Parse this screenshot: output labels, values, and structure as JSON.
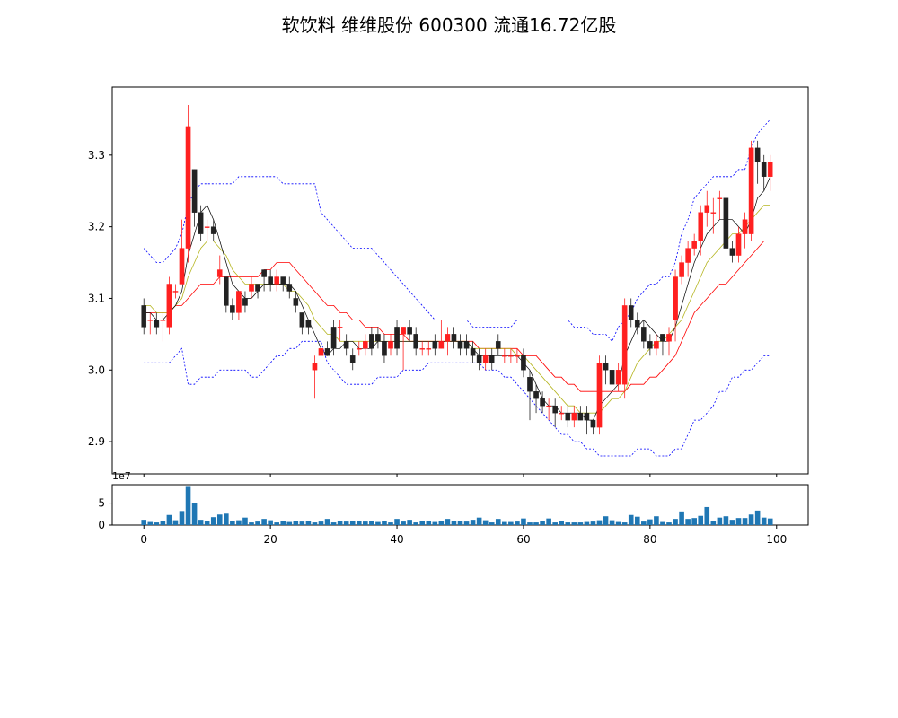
{
  "title": "软饮料 维维股份 600300 流通16.72亿股",
  "chart_data": [
    {
      "type": "candlestick",
      "x": [
        0,
        1,
        2,
        3,
        4,
        5,
        6,
        7,
        8,
        9,
        10,
        11,
        12,
        13,
        14,
        15,
        16,
        17,
        18,
        19,
        20,
        21,
        22,
        23,
        24,
        25,
        26,
        27,
        28,
        29,
        30,
        31,
        32,
        33,
        34,
        35,
        36,
        37,
        38,
        39,
        40,
        41,
        42,
        43,
        44,
        45,
        46,
        47,
        48,
        49,
        50,
        51,
        52,
        53,
        54,
        55,
        56,
        57,
        58,
        59,
        60,
        61,
        62,
        63,
        64,
        65,
        66,
        67,
        68,
        69,
        70,
        71,
        72,
        73,
        74,
        75,
        76,
        77,
        78,
        79,
        80,
        81,
        82,
        83,
        84,
        85,
        86,
        87,
        88,
        89,
        90,
        91,
        92,
        93,
        94,
        95,
        96,
        97,
        98,
        99
      ],
      "open": [
        3.09,
        3.07,
        3.07,
        3.07,
        3.06,
        3.11,
        3.12,
        3.17,
        3.28,
        3.22,
        3.2,
        3.2,
        3.13,
        3.13,
        3.09,
        3.08,
        3.1,
        3.11,
        3.12,
        3.14,
        3.13,
        3.12,
        3.13,
        3.12,
        3.1,
        3.08,
        3.07,
        3.0,
        3.02,
        3.03,
        3.06,
        3.06,
        3.04,
        3.02,
        3.03,
        3.03,
        3.05,
        3.05,
        3.04,
        3.03,
        3.06,
        3.05,
        3.06,
        3.05,
        3.03,
        3.03,
        3.04,
        3.03,
        3.04,
        3.05,
        3.04,
        3.04,
        3.03,
        3.02,
        3.01,
        3.02,
        3.04,
        3.02,
        3.02,
        3.02,
        3.02,
        2.99,
        2.97,
        2.96,
        2.95,
        2.95,
        2.94,
        2.94,
        2.93,
        2.94,
        2.94,
        2.93,
        2.92,
        3.01,
        3.0,
        2.98,
        2.98,
        3.09,
        3.07,
        3.06,
        3.04,
        3.03,
        3.05,
        3.04,
        3.07,
        3.13,
        3.15,
        3.17,
        3.18,
        3.22,
        3.22,
        3.24,
        3.24,
        3.17,
        3.16,
        3.19,
        3.19,
        3.31,
        3.29,
        3.27
      ],
      "close": [
        3.06,
        3.07,
        3.06,
        3.07,
        3.12,
        3.11,
        3.17,
        3.34,
        3.22,
        3.19,
        3.2,
        3.19,
        3.14,
        3.09,
        3.08,
        3.11,
        3.09,
        3.12,
        3.11,
        3.13,
        3.12,
        3.13,
        3.12,
        3.11,
        3.09,
        3.06,
        3.06,
        3.01,
        3.03,
        3.02,
        3.03,
        3.06,
        3.03,
        3.01,
        3.03,
        3.04,
        3.03,
        3.04,
        3.02,
        3.04,
        3.03,
        3.06,
        3.05,
        3.03,
        3.03,
        3.03,
        3.03,
        3.04,
        3.05,
        3.04,
        3.03,
        3.03,
        3.02,
        3.01,
        3.02,
        3.01,
        3.03,
        3.02,
        3.02,
        3.02,
        3.0,
        2.97,
        2.96,
        2.95,
        2.95,
        2.94,
        2.94,
        2.93,
        2.94,
        2.93,
        2.93,
        2.92,
        3.01,
        3.0,
        2.98,
        3.0,
        3.09,
        3.07,
        3.06,
        3.04,
        3.03,
        3.04,
        3.04,
        3.05,
        3.13,
        3.15,
        3.17,
        3.18,
        3.22,
        3.23,
        3.22,
        3.24,
        3.17,
        3.16,
        3.19,
        3.21,
        3.31,
        3.29,
        3.27,
        3.29
      ],
      "high": [
        3.1,
        3.08,
        3.08,
        3.08,
        3.13,
        3.12,
        3.21,
        3.37,
        3.28,
        3.23,
        3.21,
        3.21,
        3.16,
        3.13,
        3.1,
        3.11,
        3.11,
        3.13,
        3.12,
        3.14,
        3.14,
        3.14,
        3.13,
        3.13,
        3.11,
        3.08,
        3.07,
        3.02,
        3.03,
        3.04,
        3.07,
        3.07,
        3.05,
        3.03,
        3.04,
        3.05,
        3.06,
        3.06,
        3.05,
        3.05,
        3.07,
        3.06,
        3.07,
        3.06,
        3.04,
        3.04,
        3.05,
        3.07,
        3.06,
        3.06,
        3.05,
        3.05,
        3.04,
        3.03,
        3.03,
        3.03,
        3.05,
        3.03,
        3.03,
        3.03,
        3.03,
        3.0,
        2.98,
        2.97,
        2.96,
        2.96,
        2.95,
        2.95,
        2.95,
        2.95,
        2.95,
        2.93,
        3.02,
        3.02,
        3.01,
        3.01,
        3.1,
        3.1,
        3.08,
        3.07,
        3.05,
        3.05,
        3.05,
        3.06,
        3.14,
        3.16,
        3.18,
        3.19,
        3.23,
        3.25,
        3.24,
        3.25,
        3.24,
        3.18,
        3.2,
        3.22,
        3.32,
        3.32,
        3.3,
        3.3
      ],
      "low": [
        3.05,
        3.05,
        3.05,
        3.04,
        3.05,
        3.1,
        3.12,
        3.15,
        3.2,
        3.18,
        3.18,
        3.18,
        3.12,
        3.08,
        3.07,
        3.07,
        3.08,
        3.1,
        3.1,
        3.11,
        3.11,
        3.11,
        3.11,
        3.1,
        3.08,
        3.05,
        3.05,
        2.96,
        3.01,
        3.02,
        3.02,
        3.04,
        3.02,
        3.0,
        3.02,
        3.02,
        3.02,
        3.03,
        3.01,
        3.02,
        3.02,
        3.0,
        3.04,
        3.02,
        3.02,
        3.02,
        3.02,
        3.03,
        3.02,
        3.03,
        3.02,
        3.02,
        3.01,
        3.0,
        3.0,
        3.0,
        3.02,
        3.01,
        3.01,
        3.01,
        2.99,
        2.93,
        2.94,
        2.94,
        2.93,
        2.92,
        2.93,
        2.92,
        2.92,
        2.93,
        2.91,
        2.91,
        2.91,
        2.98,
        2.97,
        2.97,
        2.96,
        3.06,
        3.05,
        3.03,
        3.02,
        3.02,
        3.02,
        3.02,
        3.04,
        3.12,
        3.13,
        3.16,
        3.16,
        3.2,
        3.19,
        3.21,
        3.15,
        3.15,
        3.15,
        3.17,
        3.18,
        3.26,
        3.25,
        3.25
      ],
      "ma_short": [
        3.08,
        3.08,
        3.07,
        3.07,
        3.08,
        3.09,
        3.11,
        3.16,
        3.19,
        3.22,
        3.23,
        3.21,
        3.18,
        3.15,
        3.12,
        3.11,
        3.1,
        3.1,
        3.11,
        3.12,
        3.12,
        3.12,
        3.12,
        3.12,
        3.11,
        3.09,
        3.07,
        3.05,
        3.03,
        3.02,
        3.03,
        3.03,
        3.04,
        3.04,
        3.03,
        3.03,
        3.03,
        3.04,
        3.04,
        3.04,
        3.04,
        3.04,
        3.04,
        3.04,
        3.04,
        3.04,
        3.04,
        3.04,
        3.04,
        3.04,
        3.04,
        3.04,
        3.03,
        3.02,
        3.02,
        3.02,
        3.02,
        3.02,
        3.02,
        3.02,
        3.01,
        3.0,
        2.98,
        2.96,
        2.95,
        2.95,
        2.94,
        2.94,
        2.94,
        2.94,
        2.93,
        2.93,
        2.95,
        2.96,
        2.97,
        2.98,
        3.02,
        3.04,
        3.06,
        3.07,
        3.06,
        3.05,
        3.04,
        3.04,
        3.06,
        3.09,
        3.12,
        3.15,
        3.17,
        3.19,
        3.2,
        3.21,
        3.21,
        3.21,
        3.2,
        3.19,
        3.21,
        3.24,
        3.25,
        3.27
      ],
      "ma_mid": [
        3.09,
        3.09,
        3.08,
        3.08,
        3.08,
        3.09,
        3.1,
        3.13,
        3.15,
        3.17,
        3.18,
        3.18,
        3.17,
        3.16,
        3.14,
        3.13,
        3.12,
        3.12,
        3.12,
        3.12,
        3.12,
        3.12,
        3.12,
        3.11,
        3.11,
        3.1,
        3.09,
        3.07,
        3.06,
        3.05,
        3.05,
        3.04,
        3.04,
        3.04,
        3.04,
        3.04,
        3.04,
        3.04,
        3.04,
        3.04,
        3.04,
        3.04,
        3.04,
        3.04,
        3.04,
        3.04,
        3.04,
        3.04,
        3.04,
        3.04,
        3.04,
        3.04,
        3.03,
        3.03,
        3.03,
        3.03,
        3.03,
        3.03,
        3.03,
        3.02,
        3.02,
        3.01,
        3.0,
        2.99,
        2.98,
        2.97,
        2.96,
        2.95,
        2.95,
        2.94,
        2.94,
        2.94,
        2.94,
        2.95,
        2.96,
        2.96,
        2.97,
        2.99,
        3.01,
        3.02,
        3.03,
        3.04,
        3.04,
        3.05,
        3.06,
        3.07,
        3.09,
        3.11,
        3.13,
        3.15,
        3.16,
        3.17,
        3.18,
        3.19,
        3.19,
        3.2,
        3.21,
        3.22,
        3.23,
        3.23
      ],
      "ma_long": [
        3.08,
        3.08,
        3.08,
        3.08,
        3.08,
        3.09,
        3.09,
        3.1,
        3.11,
        3.12,
        3.12,
        3.12,
        3.13,
        3.13,
        3.13,
        3.13,
        3.13,
        3.13,
        3.13,
        3.14,
        3.14,
        3.15,
        3.15,
        3.15,
        3.14,
        3.13,
        3.12,
        3.11,
        3.1,
        3.09,
        3.09,
        3.08,
        3.08,
        3.07,
        3.07,
        3.06,
        3.06,
        3.06,
        3.05,
        3.05,
        3.05,
        3.05,
        3.04,
        3.04,
        3.04,
        3.04,
        3.04,
        3.04,
        3.04,
        3.04,
        3.04,
        3.04,
        3.04,
        3.03,
        3.03,
        3.03,
        3.03,
        3.03,
        3.03,
        3.03,
        3.02,
        3.02,
        3.02,
        3.01,
        3.0,
        2.99,
        2.99,
        2.98,
        2.98,
        2.97,
        2.97,
        2.97,
        2.97,
        2.97,
        2.97,
        2.97,
        2.97,
        2.98,
        2.98,
        2.98,
        2.99,
        2.99,
        3.0,
        3.01,
        3.02,
        3.04,
        3.06,
        3.08,
        3.09,
        3.1,
        3.11,
        3.12,
        3.12,
        3.13,
        3.14,
        3.15,
        3.16,
        3.17,
        3.18,
        3.18
      ],
      "boll_upper": [
        3.17,
        3.16,
        3.15,
        3.15,
        3.16,
        3.17,
        3.19,
        3.23,
        3.25,
        3.26,
        3.26,
        3.26,
        3.26,
        3.26,
        3.26,
        3.27,
        3.27,
        3.27,
        3.27,
        3.27,
        3.27,
        3.27,
        3.26,
        3.26,
        3.26,
        3.26,
        3.26,
        3.26,
        3.22,
        3.21,
        3.2,
        3.19,
        3.18,
        3.17,
        3.17,
        3.17,
        3.17,
        3.16,
        3.15,
        3.14,
        3.13,
        3.12,
        3.11,
        3.1,
        3.09,
        3.08,
        3.07,
        3.07,
        3.07,
        3.07,
        3.07,
        3.07,
        3.06,
        3.06,
        3.06,
        3.06,
        3.06,
        3.06,
        3.06,
        3.07,
        3.07,
        3.07,
        3.07,
        3.07,
        3.07,
        3.07,
        3.07,
        3.07,
        3.06,
        3.06,
        3.06,
        3.05,
        3.05,
        3.05,
        3.04,
        3.06,
        3.07,
        3.08,
        3.1,
        3.11,
        3.12,
        3.12,
        3.13,
        3.13,
        3.15,
        3.19,
        3.21,
        3.24,
        3.25,
        3.26,
        3.27,
        3.27,
        3.27,
        3.27,
        3.28,
        3.28,
        3.31,
        3.33,
        3.34,
        3.35
      ],
      "boll_lower": [
        3.01,
        3.01,
        3.01,
        3.01,
        3.01,
        3.02,
        3.03,
        2.98,
        2.98,
        2.99,
        2.99,
        2.99,
        3.0,
        3.0,
        3.0,
        3.0,
        3.0,
        2.99,
        2.99,
        3.0,
        3.01,
        3.02,
        3.02,
        3.03,
        3.03,
        3.04,
        3.04,
        3.04,
        3.04,
        3.01,
        3.0,
        2.99,
        2.98,
        2.98,
        2.98,
        2.98,
        2.98,
        2.99,
        2.99,
        2.99,
        2.99,
        3.0,
        3.0,
        3.0,
        3.0,
        3.01,
        3.01,
        3.01,
        3.01,
        3.01,
        3.01,
        3.01,
        3.01,
        3.01,
        3.0,
        3.0,
        3.0,
        2.99,
        2.99,
        2.98,
        2.97,
        2.96,
        2.95,
        2.94,
        2.93,
        2.92,
        2.91,
        2.91,
        2.9,
        2.9,
        2.89,
        2.89,
        2.88,
        2.88,
        2.88,
        2.88,
        2.88,
        2.88,
        2.89,
        2.89,
        2.89,
        2.88,
        2.88,
        2.88,
        2.89,
        2.89,
        2.91,
        2.93,
        2.93,
        2.94,
        2.95,
        2.97,
        2.97,
        2.99,
        2.99,
        3.0,
        3.0,
        3.01,
        3.02,
        3.02
      ],
      "ylim": [
        2.855,
        3.395
      ],
      "yticks": [
        2.9,
        3.0,
        3.1,
        3.2,
        3.3
      ],
      "ytick_labels": [
        "2.9",
        "3.0",
        "3.1",
        "3.2",
        "3.3"
      ],
      "xlim": [
        -5,
        105
      ],
      "colors": {
        "up": "#ff2020",
        "down": "#222222",
        "ma_short": "#000000",
        "ma_mid": "#b5b520",
        "ma_long": "#ff0000",
        "boll": "#0000ff"
      }
    },
    {
      "type": "bar",
      "x": [
        0,
        1,
        2,
        3,
        4,
        5,
        6,
        7,
        8,
        9,
        10,
        11,
        12,
        13,
        14,
        15,
        16,
        17,
        18,
        19,
        20,
        21,
        22,
        23,
        24,
        25,
        26,
        27,
        28,
        29,
        30,
        31,
        32,
        33,
        34,
        35,
        36,
        37,
        38,
        39,
        40,
        41,
        42,
        43,
        44,
        45,
        46,
        47,
        48,
        49,
        50,
        51,
        52,
        53,
        54,
        55,
        56,
        57,
        58,
        59,
        60,
        61,
        62,
        63,
        64,
        65,
        66,
        67,
        68,
        69,
        70,
        71,
        72,
        73,
        74,
        75,
        76,
        77,
        78,
        79,
        80,
        81,
        82,
        83,
        84,
        85,
        86,
        87,
        88,
        89,
        90,
        91,
        92,
        93,
        94,
        95,
        96,
        97,
        98,
        99
      ],
      "values": [
        1.2,
        0.7,
        0.6,
        1.0,
        2.3,
        1.1,
        3.2,
        8.7,
        5.0,
        1.2,
        1.0,
        1.8,
        2.4,
        2.6,
        1.0,
        1.1,
        1.7,
        0.6,
        0.8,
        1.4,
        1.1,
        0.6,
        0.9,
        0.7,
        0.9,
        0.8,
        0.9,
        0.6,
        0.8,
        1.4,
        0.6,
        0.9,
        0.8,
        0.9,
        0.9,
        0.8,
        1.0,
        0.7,
        0.9,
        0.6,
        1.4,
        0.8,
        1.2,
        0.6,
        1.0,
        0.9,
        0.7,
        1.0,
        1.4,
        0.9,
        0.9,
        0.8,
        1.2,
        1.7,
        1.1,
        0.6,
        1.4,
        0.7,
        0.7,
        0.8,
        1.5,
        0.6,
        0.6,
        0.9,
        1.5,
        0.6,
        0.9,
        0.6,
        0.6,
        0.6,
        0.7,
        0.8,
        1.1,
        2.0,
        1.1,
        0.7,
        0.6,
        2.3,
        1.9,
        0.8,
        1.3,
        2.0,
        0.7,
        0.6,
        1.4,
        3.1,
        1.4,
        1.6,
        2.1,
        4.1,
        0.9,
        1.7,
        2.0,
        1.2,
        1.6,
        1.6,
        2.4,
        3.3,
        1.7,
        1.5
      ],
      "ylim": [
        0,
        9.2
      ],
      "yticks": [
        0,
        5
      ],
      "ytick_labels": [
        "0",
        "5"
      ],
      "y_scale_label": "1e7",
      "xlim": [
        -5,
        105
      ],
      "xticks": [
        0,
        20,
        40,
        60,
        80,
        100
      ],
      "xtick_labels": [
        "0",
        "20",
        "40",
        "60",
        "80",
        "100"
      ],
      "color": "#1f77b4"
    }
  ]
}
